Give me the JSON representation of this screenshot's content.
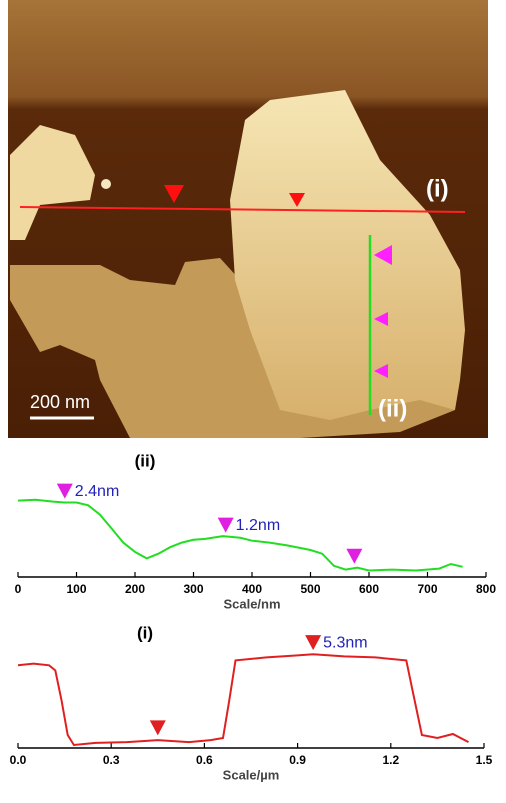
{
  "image": {
    "labels": [
      "(i)",
      "(ii)"
    ],
    "scale_bar": "200 nm"
  },
  "chart_data": [
    {
      "type": "line",
      "title": "(ii)",
      "xlabel": "Scale/nm",
      "color": "#22dd22",
      "x": [
        0,
        30,
        60,
        80,
        100,
        120,
        140,
        160,
        180,
        200,
        220,
        240,
        260,
        280,
        300,
        320,
        350,
        380,
        400,
        430,
        460,
        500,
        520,
        540,
        560,
        580,
        600,
        640,
        680,
        720,
        740,
        760
      ],
      "values": [
        5.17,
        5.23,
        5.1,
        5.04,
        5.04,
        4.85,
        4.22,
        3.28,
        2.33,
        1.7,
        1.26,
        1.58,
        2.02,
        2.33,
        2.52,
        2.58,
        2.77,
        2.65,
        2.46,
        2.33,
        2.14,
        1.83,
        1.58,
        0.76,
        0.5,
        0.63,
        0.44,
        0.5,
        0.44,
        0.57,
        0.88,
        0.69
      ],
      "xlim": [
        0,
        800
      ],
      "xticks": [
        0,
        100,
        200,
        300,
        400,
        500,
        600,
        700,
        800
      ],
      "ylim": [
        0,
        6.7
      ],
      "markers": [
        {
          "x": 80,
          "y": 5.3,
          "color": "#e020e0",
          "label": "2.4nm"
        },
        {
          "x": 355,
          "y": 3.0,
          "color": "#e020e0",
          "label": "1.2nm"
        },
        {
          "x": 575,
          "y": 0.9,
          "color": "#e020e0"
        }
      ]
    },
    {
      "type": "line",
      "title": "(i)",
      "xlabel": "Scale/µm",
      "color": "#e02020",
      "x": [
        0,
        0.05,
        0.1,
        0.12,
        0.14,
        0.16,
        0.18,
        0.25,
        0.35,
        0.45,
        0.55,
        0.62,
        0.66,
        0.68,
        0.7,
        0.8,
        0.9,
        0.95,
        1.05,
        1.15,
        1.25,
        1.27,
        1.3,
        1.35,
        1.4,
        1.45
      ],
      "values": [
        4.9,
        5.0,
        4.9,
        4.6,
        2.83,
        0.77,
        0.18,
        0.3,
        0.35,
        0.47,
        0.35,
        0.47,
        0.59,
        2.83,
        5.19,
        5.37,
        5.49,
        5.55,
        5.43,
        5.37,
        5.19,
        3.42,
        0.77,
        0.59,
        0.83,
        0.35
      ],
      "xlim": [
        0,
        1.5
      ],
      "xticks": [
        {
          "value": 0,
          "label": "0.0"
        },
        0.3,
        0.6,
        0.9,
        1.2,
        1.5
      ],
      "ylim": [
        0,
        6.4
      ],
      "markers": [
        {
          "x": 0.45,
          "y": 0.75,
          "color": "#e02020"
        },
        {
          "x": 0.95,
          "y": 5.8,
          "color": "#e02020",
          "label": "5.3nm"
        }
      ]
    }
  ]
}
